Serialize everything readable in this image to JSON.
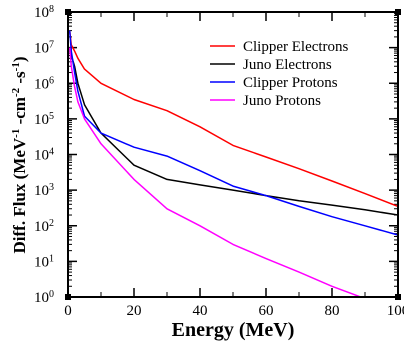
{
  "chart_data": {
    "type": "line",
    "xlabel": "Energy (MeV)",
    "ylabel": "Diff. Flux (MeV-1 -cm-2 -s-1)",
    "xlim": [
      0,
      100
    ],
    "ylim": [
      1,
      100000000
    ],
    "yscale": "log",
    "grid": false,
    "legend_position": "top-right",
    "x_ticks": [
      0,
      20,
      40,
      60,
      80,
      100
    ],
    "y_tick_exponents": [
      0,
      1,
      2,
      3,
      4,
      5,
      6,
      7,
      8
    ],
    "series": [
      {
        "name": "Clipper Electrons",
        "color": "#ff0000",
        "x": [
          0.5,
          1,
          2,
          3,
          5,
          10,
          20,
          30,
          40,
          50,
          60,
          70,
          80,
          90,
          100
        ],
        "y": [
          30000000,
          12000000,
          8000000,
          5000000,
          2500000,
          1000000,
          350000,
          170000,
          60000,
          18000,
          8500,
          4000,
          1800,
          800,
          350
        ]
      },
      {
        "name": "Juno Electrons",
        "color": "#000000",
        "x": [
          0.5,
          1,
          2,
          3,
          5,
          10,
          20,
          30,
          40,
          50,
          60,
          70,
          80,
          90,
          100
        ],
        "y": [
          10000000,
          6000000,
          3000000,
          1000000,
          250000,
          40000,
          5000,
          2000,
          1400,
          1000,
          700,
          500,
          380,
          280,
          200
        ]
      },
      {
        "name": "Clipper Protons",
        "color": "#0000ff",
        "x": [
          0.5,
          1,
          2,
          3,
          5,
          10,
          20,
          30,
          40,
          50,
          60,
          70,
          80,
          90,
          100
        ],
        "y": [
          30000000,
          8000000,
          2000000,
          600000,
          120000,
          40000,
          16000,
          9000,
          3500,
          1300,
          700,
          350,
          180,
          100,
          55
        ]
      },
      {
        "name": "Juno Protons",
        "color": "#ff00ff",
        "x": [
          0.5,
          1,
          2,
          3,
          5,
          10,
          20,
          30,
          40,
          50,
          60,
          70,
          80,
          90,
          100
        ],
        "y": [
          10000000,
          3000000,
          800000,
          300000,
          100000,
          20000,
          2000,
          300,
          100,
          30,
          12,
          5,
          2,
          0.9,
          0.4
        ]
      }
    ]
  }
}
